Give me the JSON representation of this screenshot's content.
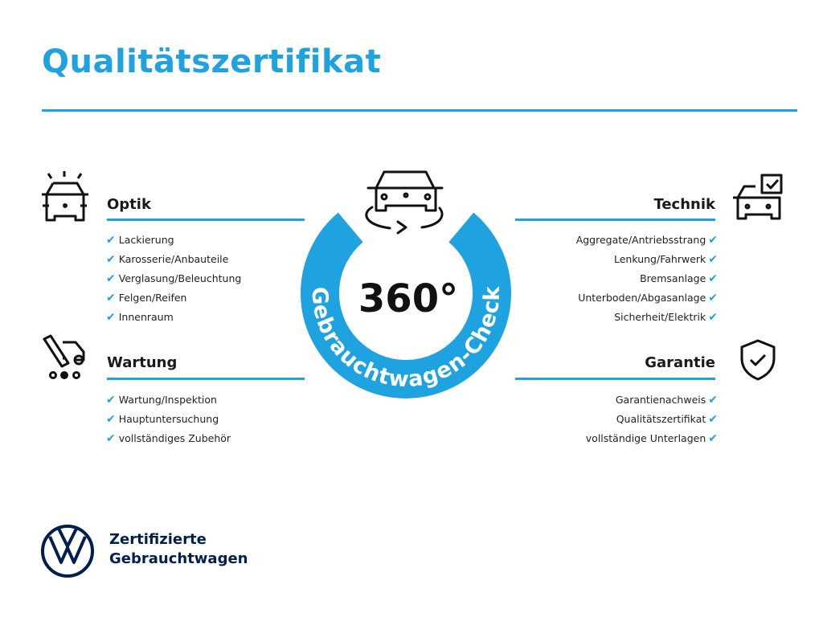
{
  "title": "Qualitätszertifikat",
  "accent_color": "#1fa3e0",
  "brand_color": "#001e50",
  "center": {
    "degrees": "360°",
    "ring_label": "Gebrauchtwagen-Check",
    "icon": "car-rotate-icon"
  },
  "sections": {
    "optik": {
      "heading": "Optik",
      "icon": "car-lights-icon",
      "items": [
        "Lackierung",
        "Karosserie/Anbauteile",
        "Verglasung/Beleuchtung",
        "Felgen/Reifen",
        "Innenraum"
      ]
    },
    "wartung": {
      "heading": "Wartung",
      "icon": "service-van-icon",
      "items": [
        "Wartung/Inspektion",
        "Hauptuntersuchung",
        "vollständiges Zubehör"
      ]
    },
    "technik": {
      "heading": "Technik",
      "icon": "car-checkbox-icon",
      "items": [
        "Aggregate/Antriebsstrang",
        "Lenkung/Fahrwerk",
        "Bremsanlage",
        "Unterboden/Abgasanlage",
        "Sicherheit/Elektrik"
      ]
    },
    "garantie": {
      "heading": "Garantie",
      "icon": "shield-check-icon",
      "items": [
        "Garantienachweis",
        "Qualitätszertifikat",
        "vollständige Unterlagen"
      ]
    }
  },
  "check_glyph": "✔",
  "footer": {
    "line1": "Zertifizierte",
    "line2": "Gebrauchtwagen",
    "logo": "vw-logo"
  }
}
